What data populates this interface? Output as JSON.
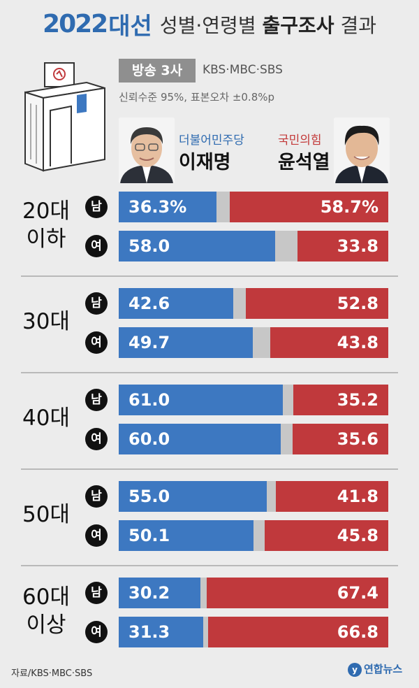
{
  "title": {
    "year": "2022",
    "daeseon": "대선",
    "part1": "성별·연령별",
    "part2": "출구조사",
    "part3": "결과"
  },
  "broadcast": {
    "badge": "방송 3사",
    "stations": "KBS·MBC·SBS",
    "confidence": "신뢰수준 95%, 표본오차 ±0.8%p"
  },
  "candidates": [
    {
      "party": "더불어민주당",
      "name": "이재명",
      "color": "#3d78c1"
    },
    {
      "party": "국민의힘",
      "name": "윤석열",
      "color": "#c0393c"
    }
  ],
  "chart_data": {
    "type": "bar",
    "stacked": true,
    "categories": [
      "20대 이하 남",
      "20대 이하 여",
      "30대 남",
      "30대 여",
      "40대 남",
      "40대 여",
      "50대 남",
      "50대 여",
      "60대 이상 남",
      "60대 이상 여"
    ],
    "series": [
      {
        "name": "이재명",
        "values": [
          36.3,
          58.0,
          42.6,
          49.7,
          61.0,
          60.0,
          55.0,
          50.1,
          30.2,
          31.3
        ]
      },
      {
        "name": "윤석열",
        "values": [
          58.7,
          33.8,
          52.8,
          43.8,
          35.2,
          35.6,
          41.8,
          45.8,
          67.4,
          66.8
        ]
      }
    ],
    "xlim": [
      0,
      100
    ],
    "groups": [
      {
        "label": "20대\n이하",
        "rows": [
          {
            "gender": "남",
            "lee": 36.3,
            "yoon": 58.7,
            "lee_label": "36.3%",
            "yoon_label": "58.7%"
          },
          {
            "gender": "여",
            "lee": 58.0,
            "yoon": 33.8,
            "lee_label": "58.0",
            "yoon_label": "33.8"
          }
        ]
      },
      {
        "label": "30대",
        "rows": [
          {
            "gender": "남",
            "lee": 42.6,
            "yoon": 52.8,
            "lee_label": "42.6",
            "yoon_label": "52.8"
          },
          {
            "gender": "여",
            "lee": 49.7,
            "yoon": 43.8,
            "lee_label": "49.7",
            "yoon_label": "43.8"
          }
        ]
      },
      {
        "label": "40대",
        "rows": [
          {
            "gender": "남",
            "lee": 61.0,
            "yoon": 35.2,
            "lee_label": "61.0",
            "yoon_label": "35.2"
          },
          {
            "gender": "여",
            "lee": 60.0,
            "yoon": 35.6,
            "lee_label": "60.0",
            "yoon_label": "35.6"
          }
        ]
      },
      {
        "label": "50대",
        "rows": [
          {
            "gender": "남",
            "lee": 55.0,
            "yoon": 41.8,
            "lee_label": "55.0",
            "yoon_label": "41.8"
          },
          {
            "gender": "여",
            "lee": 50.1,
            "yoon": 45.8,
            "lee_label": "50.1",
            "yoon_label": "45.8"
          }
        ]
      },
      {
        "label": "60대\n이상",
        "rows": [
          {
            "gender": "남",
            "lee": 30.2,
            "yoon": 67.4,
            "lee_label": "30.2",
            "yoon_label": "67.4"
          },
          {
            "gender": "여",
            "lee": 31.3,
            "yoon": 66.8,
            "lee_label": "31.3",
            "yoon_label": "66.8"
          }
        ]
      }
    ]
  },
  "footer": {
    "source": "자료/KBS·MBC·SBS",
    "logo": "연합뉴스"
  }
}
